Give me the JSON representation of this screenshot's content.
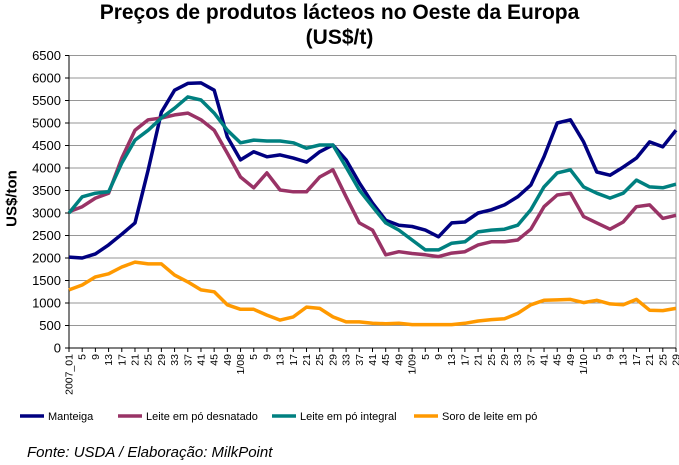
{
  "chart_data": {
    "type": "line",
    "title": [
      "Preços de produtos lácteos no Oeste da Europa",
      "(US$/t)"
    ],
    "ylabel": "US$/ton",
    "xlabel": "",
    "ylim": [
      0,
      6500
    ],
    "yticks": [
      0,
      500,
      1000,
      1500,
      2000,
      2500,
      3000,
      3500,
      4000,
      4500,
      5000,
      5500,
      6000,
      6500
    ],
    "grid": true,
    "legend_position": "bottom",
    "categories": [
      "2007_01",
      "5",
      "9",
      "13",
      "17",
      "21",
      "25",
      "29",
      "33",
      "37",
      "41",
      "45",
      "49",
      "1/08",
      "5",
      "9",
      "13",
      "17",
      "21",
      "25",
      "29",
      "33",
      "37",
      "41",
      "45",
      "49",
      "1/09",
      "5",
      "9",
      "13",
      "17",
      "21",
      "25",
      "29",
      "33",
      "37",
      "41",
      "45",
      "49",
      "1/10",
      "5",
      "9",
      "13",
      "17",
      "21",
      "25",
      "29"
    ],
    "series": [
      {
        "name": "Manteiga",
        "color": "#000080",
        "values": [
          2020,
          2000,
          2090,
          2290,
          2530,
          2780,
          3960,
          5240,
          5730,
          5880,
          5890,
          5730,
          4690,
          4180,
          4360,
          4250,
          4290,
          4220,
          4130,
          4360,
          4510,
          4180,
          3670,
          3220,
          2840,
          2730,
          2700,
          2620,
          2470,
          2780,
          2800,
          3000,
          3070,
          3180,
          3360,
          3620,
          4250,
          5000,
          5070,
          4580,
          3910,
          3840,
          4020,
          4220,
          4580,
          4470,
          4840
        ]
      },
      {
        "name": "Leite em pó desnatado",
        "color": "#993366",
        "values": [
          3030,
          3140,
          3330,
          3440,
          4220,
          4840,
          5070,
          5110,
          5180,
          5220,
          5070,
          4840,
          4330,
          3800,
          3560,
          3890,
          3510,
          3470,
          3470,
          3800,
          3960,
          3360,
          2780,
          2620,
          2070,
          2140,
          2100,
          2070,
          2030,
          2110,
          2140,
          2290,
          2360,
          2360,
          2400,
          2640,
          3140,
          3400,
          3440,
          2920,
          2780,
          2640,
          2800,
          3140,
          3180,
          2880,
          2950
        ]
      },
      {
        "name": "Leite em pó integral",
        "color": "#008080",
        "values": [
          3000,
          3360,
          3440,
          3470,
          4110,
          4620,
          4840,
          5110,
          5330,
          5580,
          5510,
          5220,
          4840,
          4560,
          4620,
          4600,
          4600,
          4560,
          4440,
          4510,
          4510,
          4020,
          3510,
          3140,
          2780,
          2620,
          2400,
          2180,
          2180,
          2330,
          2360,
          2580,
          2620,
          2640,
          2730,
          3070,
          3580,
          3890,
          3960,
          3580,
          3440,
          3330,
          3440,
          3730,
          3580,
          3560,
          3640
        ]
      },
      {
        "name": "Soro de leite em pó",
        "color": "#FF9900",
        "values": [
          1290,
          1400,
          1580,
          1650,
          1800,
          1910,
          1870,
          1870,
          1620,
          1470,
          1290,
          1250,
          960,
          860,
          860,
          730,
          620,
          690,
          910,
          880,
          690,
          580,
          580,
          550,
          540,
          550,
          520,
          520,
          520,
          520,
          550,
          600,
          630,
          650,
          770,
          960,
          1060,
          1070,
          1080,
          1010,
          1060,
          980,
          960,
          1080,
          840,
          830,
          880
        ]
      }
    ]
  },
  "source": "Fonte: USDA / Elaboração: MilkPoint"
}
